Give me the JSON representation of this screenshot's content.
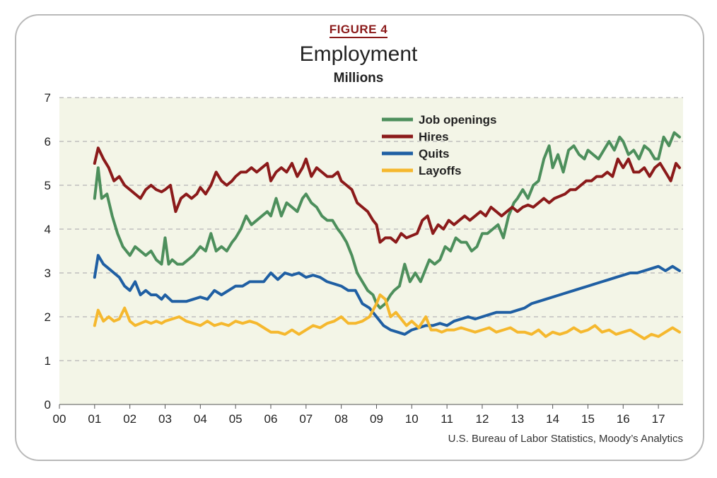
{
  "figure_label": "FIGURE 4",
  "source": "U.S. Bureau of Labor Statistics, Moody’s Analytics",
  "colors": {
    "background": "#f3f5e7",
    "grid": "#b5b5b5",
    "figure_label": "#8b1a1a"
  },
  "chart_data": {
    "type": "line",
    "title": "Employment",
    "subtitle": "Millions",
    "xlabel": "",
    "ylabel": "",
    "x_ticks": [
      "00",
      "01",
      "02",
      "03",
      "04",
      "05",
      "06",
      "07",
      "08",
      "09",
      "10",
      "11",
      "12",
      "13",
      "14",
      "15",
      "16",
      "17"
    ],
    "xlim": [
      2000,
      2017.7
    ],
    "ylim": [
      0,
      7
    ],
    "y_ticks": [
      0,
      1,
      2,
      3,
      4,
      5,
      6,
      7
    ],
    "grid": "horizontal dashed",
    "legend_position": "top-center",
    "series": [
      {
        "name": "Job openings",
        "color": "#4d8f5c",
        "x": [
          2001.0,
          2001.1,
          2001.2,
          2001.35,
          2001.5,
          2001.65,
          2001.8,
          2002.0,
          2002.15,
          2002.3,
          2002.45,
          2002.6,
          2002.75,
          2002.9,
          2003.0,
          2003.1,
          2003.2,
          2003.35,
          2003.5,
          2003.65,
          2003.8,
          2004.0,
          2004.15,
          2004.3,
          2004.45,
          2004.6,
          2004.75,
          2004.9,
          2005.0,
          2005.15,
          2005.3,
          2005.45,
          2005.6,
          2005.75,
          2005.9,
          2006.0,
          2006.15,
          2006.3,
          2006.45,
          2006.6,
          2006.75,
          2006.9,
          2007.0,
          2007.15,
          2007.3,
          2007.45,
          2007.6,
          2007.75,
          2007.9,
          2008.0,
          2008.15,
          2008.3,
          2008.45,
          2008.6,
          2008.75,
          2008.9,
          2009.0,
          2009.1,
          2009.25,
          2009.4,
          2009.5,
          2009.65,
          2009.8,
          2009.95,
          2010.1,
          2010.25,
          2010.35,
          2010.5,
          2010.65,
          2010.8,
          2010.95,
          2011.1,
          2011.25,
          2011.4,
          2011.55,
          2011.7,
          2011.85,
          2012.0,
          2012.15,
          2012.3,
          2012.45,
          2012.6,
          2012.75,
          2012.9,
          2013.0,
          2013.15,
          2013.3,
          2013.45,
          2013.6,
          2013.75,
          2013.9,
          2014.0,
          2014.15,
          2014.3,
          2014.45,
          2014.6,
          2014.75,
          2014.9,
          2015.0,
          2015.15,
          2015.3,
          2015.45,
          2015.6,
          2015.75,
          2015.9,
          2016.0,
          2016.15,
          2016.3,
          2016.45,
          2016.6,
          2016.75,
          2016.9,
          2017.0,
          2017.15,
          2017.3,
          2017.45,
          2017.6
        ],
        "values": [
          4.7,
          5.4,
          4.7,
          4.8,
          4.3,
          3.9,
          3.6,
          3.4,
          3.6,
          3.5,
          3.4,
          3.5,
          3.3,
          3.2,
          3.8,
          3.2,
          3.3,
          3.2,
          3.2,
          3.3,
          3.4,
          3.6,
          3.5,
          3.9,
          3.5,
          3.6,
          3.5,
          3.7,
          3.8,
          4.0,
          4.3,
          4.1,
          4.2,
          4.3,
          4.4,
          4.3,
          4.7,
          4.3,
          4.6,
          4.5,
          4.4,
          4.7,
          4.8,
          4.6,
          4.5,
          4.3,
          4.2,
          4.2,
          4.0,
          3.9,
          3.7,
          3.4,
          3.0,
          2.8,
          2.6,
          2.5,
          2.3,
          2.2,
          2.3,
          2.5,
          2.6,
          2.7,
          3.2,
          2.8,
          3.0,
          2.8,
          3.0,
          3.3,
          3.2,
          3.3,
          3.6,
          3.5,
          3.8,
          3.7,
          3.7,
          3.5,
          3.6,
          3.9,
          3.9,
          4.0,
          4.1,
          3.8,
          4.3,
          4.6,
          4.7,
          4.9,
          4.7,
          5.0,
          5.1,
          5.6,
          5.9,
          5.4,
          5.7,
          5.3,
          5.8,
          5.9,
          5.7,
          5.6,
          5.8,
          5.7,
          5.6,
          5.8,
          6.0,
          5.8,
          6.1,
          6.0,
          5.7,
          5.8,
          5.6,
          5.9,
          5.8,
          5.6,
          5.6,
          6.1,
          5.9,
          6.2,
          6.1
        ],
        "x_note": ""
      },
      {
        "name": "Hires",
        "color": "#8b1a1a",
        "x": [
          2001.0,
          2001.1,
          2001.25,
          2001.4,
          2001.55,
          2001.7,
          2001.85,
          2002.0,
          2002.15,
          2002.3,
          2002.45,
          2002.6,
          2002.75,
          2002.9,
          2003.0,
          2003.15,
          2003.3,
          2003.45,
          2003.6,
          2003.75,
          2003.9,
          2004.0,
          2004.15,
          2004.3,
          2004.45,
          2004.6,
          2004.75,
          2004.9,
          2005.0,
          2005.15,
          2005.3,
          2005.45,
          2005.6,
          2005.75,
          2005.9,
          2006.0,
          2006.15,
          2006.3,
          2006.45,
          2006.6,
          2006.75,
          2006.9,
          2007.0,
          2007.15,
          2007.3,
          2007.45,
          2007.6,
          2007.75,
          2007.9,
          2008.0,
          2008.15,
          2008.3,
          2008.45,
          2008.6,
          2008.75,
          2008.9,
          2009.0,
          2009.1,
          2009.25,
          2009.4,
          2009.55,
          2009.7,
          2009.85,
          2010.0,
          2010.15,
          2010.3,
          2010.45,
          2010.6,
          2010.75,
          2010.9,
          2011.05,
          2011.2,
          2011.35,
          2011.5,
          2011.65,
          2011.8,
          2011.95,
          2012.1,
          2012.25,
          2012.4,
          2012.55,
          2012.7,
          2012.85,
          2013.0,
          2013.15,
          2013.3,
          2013.45,
          2013.6,
          2013.75,
          2013.9,
          2014.05,
          2014.2,
          2014.35,
          2014.5,
          2014.65,
          2014.8,
          2014.95,
          2015.1,
          2015.25,
          2015.4,
          2015.55,
          2015.7,
          2015.85,
          2016.0,
          2016.15,
          2016.3,
          2016.45,
          2016.6,
          2016.75,
          2016.9,
          2017.05,
          2017.2,
          2017.35,
          2017.5,
          2017.6
        ],
        "values": [
          5.5,
          5.85,
          5.6,
          5.4,
          5.1,
          5.2,
          5.0,
          4.9,
          4.8,
          4.7,
          4.9,
          5.0,
          4.9,
          4.85,
          4.9,
          5.0,
          4.4,
          4.7,
          4.8,
          4.7,
          4.8,
          4.95,
          4.8,
          5.0,
          5.3,
          5.1,
          5.0,
          5.1,
          5.2,
          5.3,
          5.3,
          5.4,
          5.3,
          5.4,
          5.5,
          5.1,
          5.3,
          5.4,
          5.3,
          5.5,
          5.2,
          5.4,
          5.6,
          5.2,
          5.4,
          5.3,
          5.2,
          5.2,
          5.3,
          5.1,
          5.0,
          4.9,
          4.6,
          4.5,
          4.4,
          4.2,
          4.1,
          3.7,
          3.8,
          3.8,
          3.7,
          3.9,
          3.8,
          3.85,
          3.9,
          4.2,
          4.3,
          3.9,
          4.1,
          4.0,
          4.2,
          4.1,
          4.2,
          4.3,
          4.2,
          4.3,
          4.4,
          4.3,
          4.5,
          4.4,
          4.3,
          4.4,
          4.5,
          4.4,
          4.5,
          4.55,
          4.5,
          4.6,
          4.7,
          4.6,
          4.7,
          4.75,
          4.8,
          4.9,
          4.9,
          5.0,
          5.1,
          5.1,
          5.2,
          5.2,
          5.3,
          5.2,
          5.6,
          5.4,
          5.6,
          5.3,
          5.3,
          5.4,
          5.2,
          5.4,
          5.5,
          5.3,
          5.1,
          5.5,
          5.4
        ]
      },
      {
        "name": "Quits",
        "color": "#1f5fa3",
        "x": [
          2001.0,
          2001.1,
          2001.25,
          2001.4,
          2001.55,
          2001.7,
          2001.85,
          2002.0,
          2002.15,
          2002.3,
          2002.45,
          2002.6,
          2002.75,
          2002.9,
          2003.0,
          2003.2,
          2003.4,
          2003.6,
          2003.8,
          2004.0,
          2004.2,
          2004.4,
          2004.6,
          2004.8,
          2005.0,
          2005.2,
          2005.4,
          2005.6,
          2005.8,
          2006.0,
          2006.2,
          2006.4,
          2006.6,
          2006.8,
          2007.0,
          2007.2,
          2007.4,
          2007.6,
          2007.8,
          2008.0,
          2008.2,
          2008.4,
          2008.6,
          2008.8,
          2009.0,
          2009.2,
          2009.4,
          2009.6,
          2009.8,
          2010.0,
          2010.2,
          2010.4,
          2010.6,
          2010.8,
          2011.0,
          2011.2,
          2011.4,
          2011.6,
          2011.8,
          2012.0,
          2012.2,
          2012.4,
          2012.6,
          2012.8,
          2013.0,
          2013.2,
          2013.4,
          2013.6,
          2013.8,
          2014.0,
          2014.2,
          2014.4,
          2014.6,
          2014.8,
          2015.0,
          2015.2,
          2015.4,
          2015.6,
          2015.8,
          2016.0,
          2016.2,
          2016.4,
          2016.6,
          2016.8,
          2017.0,
          2017.2,
          2017.4,
          2017.6
        ],
        "values": [
          2.9,
          3.4,
          3.2,
          3.1,
          3.0,
          2.9,
          2.7,
          2.6,
          2.8,
          2.5,
          2.6,
          2.5,
          2.5,
          2.4,
          2.5,
          2.35,
          2.35,
          2.35,
          2.4,
          2.45,
          2.4,
          2.6,
          2.5,
          2.6,
          2.7,
          2.7,
          2.8,
          2.8,
          2.8,
          3.0,
          2.85,
          3.0,
          2.95,
          3.0,
          2.9,
          2.95,
          2.9,
          2.8,
          2.75,
          2.7,
          2.6,
          2.6,
          2.3,
          2.2,
          2.0,
          1.8,
          1.7,
          1.65,
          1.6,
          1.7,
          1.75,
          1.8,
          1.8,
          1.85,
          1.8,
          1.9,
          1.95,
          2.0,
          1.95,
          2.0,
          2.05,
          2.1,
          2.1,
          2.1,
          2.15,
          2.2,
          2.3,
          2.35,
          2.4,
          2.45,
          2.5,
          2.55,
          2.6,
          2.65,
          2.7,
          2.75,
          2.8,
          2.85,
          2.9,
          2.95,
          3.0,
          3.0,
          3.05,
          3.1,
          3.15,
          3.05,
          3.15,
          3.05
        ]
      },
      {
        "name": "Layoffs",
        "color": "#f5b82e",
        "x": [
          2001.0,
          2001.1,
          2001.25,
          2001.4,
          2001.55,
          2001.7,
          2001.85,
          2002.0,
          2002.15,
          2002.3,
          2002.45,
          2002.6,
          2002.75,
          2002.9,
          2003.0,
          2003.2,
          2003.4,
          2003.6,
          2003.8,
          2004.0,
          2004.2,
          2004.4,
          2004.6,
          2004.8,
          2005.0,
          2005.2,
          2005.4,
          2005.6,
          2005.8,
          2006.0,
          2006.2,
          2006.4,
          2006.6,
          2006.8,
          2007.0,
          2007.2,
          2007.4,
          2007.6,
          2007.8,
          2008.0,
          2008.2,
          2008.4,
          2008.6,
          2008.8,
          2009.0,
          2009.1,
          2009.25,
          2009.4,
          2009.55,
          2009.7,
          2009.85,
          2010.0,
          2010.2,
          2010.4,
          2010.55,
          2010.7,
          2010.85,
          2011.0,
          2011.2,
          2011.4,
          2011.6,
          2011.8,
          2012.0,
          2012.2,
          2012.4,
          2012.6,
          2012.8,
          2013.0,
          2013.2,
          2013.4,
          2013.6,
          2013.8,
          2014.0,
          2014.2,
          2014.4,
          2014.6,
          2014.8,
          2015.0,
          2015.2,
          2015.4,
          2015.6,
          2015.8,
          2016.0,
          2016.2,
          2016.4,
          2016.6,
          2016.8,
          2017.0,
          2017.2,
          2017.4,
          2017.6
        ],
        "values": [
          1.8,
          2.15,
          1.9,
          2.0,
          1.9,
          1.95,
          2.2,
          1.9,
          1.8,
          1.85,
          1.9,
          1.85,
          1.9,
          1.85,
          1.9,
          1.95,
          2.0,
          1.9,
          1.85,
          1.8,
          1.9,
          1.8,
          1.85,
          1.8,
          1.9,
          1.85,
          1.9,
          1.85,
          1.75,
          1.65,
          1.65,
          1.6,
          1.7,
          1.6,
          1.7,
          1.8,
          1.75,
          1.85,
          1.9,
          2.0,
          1.85,
          1.85,
          1.9,
          2.0,
          2.3,
          2.5,
          2.4,
          2.0,
          2.1,
          1.95,
          1.8,
          1.9,
          1.75,
          2.0,
          1.7,
          1.7,
          1.65,
          1.7,
          1.7,
          1.75,
          1.7,
          1.65,
          1.7,
          1.75,
          1.65,
          1.7,
          1.75,
          1.65,
          1.65,
          1.6,
          1.7,
          1.55,
          1.65,
          1.6,
          1.65,
          1.75,
          1.65,
          1.7,
          1.8,
          1.65,
          1.7,
          1.6,
          1.65,
          1.7,
          1.6,
          1.5,
          1.6,
          1.55,
          1.65,
          1.75,
          1.65
        ]
      }
    ]
  }
}
